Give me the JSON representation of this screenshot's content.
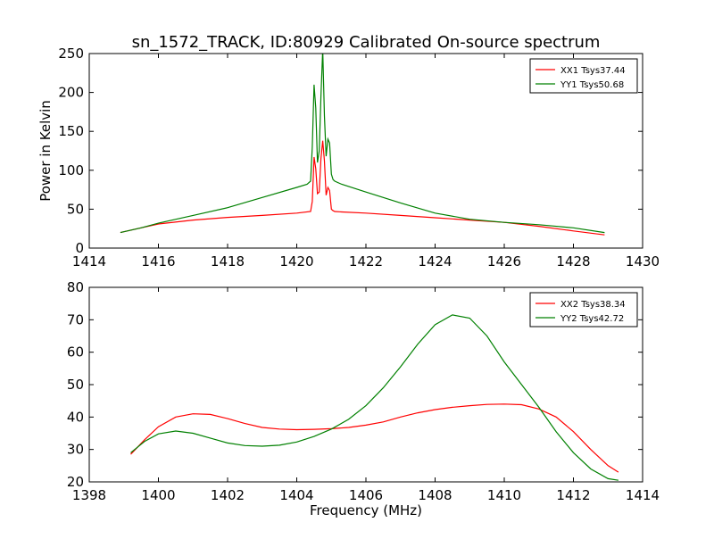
{
  "title": "sn_1572_TRACK, ID:80929 Calibrated On-source spectrum",
  "chart_data": [
    {
      "type": "line",
      "title": "sn_1572_TRACK, ID:80929 Calibrated On-source spectrum",
      "xlabel": "",
      "ylabel": "Power in Kelvin",
      "xlim": [
        1414,
        1430
      ],
      "ylim": [
        0,
        250
      ],
      "xticks": [
        1414,
        1416,
        1418,
        1420,
        1422,
        1424,
        1426,
        1428,
        1430
      ],
      "yticks": [
        0,
        50,
        100,
        150,
        200,
        250
      ],
      "grid": false,
      "legend_position": "top-right",
      "series": [
        {
          "name": "XX1 Tsys37.44",
          "color": "#ff0000",
          "x": [
            1414.9,
            1415.5,
            1416,
            1417,
            1418,
            1419,
            1420,
            1420.4,
            1420.45,
            1420.5,
            1420.55,
            1420.6,
            1420.65,
            1420.7,
            1420.75,
            1420.8,
            1420.85,
            1420.9,
            1420.95,
            1421.0,
            1421.05,
            1421.1,
            1421.3,
            1422,
            1423,
            1424,
            1425,
            1426,
            1427,
            1428,
            1428.9
          ],
          "y": [
            20,
            26,
            31,
            36,
            39.5,
            42,
            45,
            47,
            60,
            117,
            102,
            70,
            72,
            115,
            138,
            112,
            68,
            78,
            74,
            50,
            48,
            47,
            46.5,
            45,
            42,
            39,
            36,
            33,
            28,
            22,
            17
          ]
        },
        {
          "name": "YY1 Tsys50.68",
          "color": "#008000",
          "x": [
            1414.9,
            1415.5,
            1416,
            1417,
            1418,
            1419,
            1420,
            1420.3,
            1420.4,
            1420.45,
            1420.5,
            1420.55,
            1420.6,
            1420.65,
            1420.7,
            1420.75,
            1420.8,
            1420.85,
            1420.9,
            1420.95,
            1421.0,
            1421.05,
            1421.1,
            1421.3,
            1422,
            1423,
            1424,
            1425,
            1426,
            1427,
            1428,
            1428.9
          ],
          "y": [
            20,
            26,
            32,
            42,
            52,
            65,
            78,
            82,
            86,
            130,
            210,
            180,
            110,
            125,
            195,
            255,
            170,
            118,
            140,
            135,
            95,
            88,
            86,
            82,
            72,
            58,
            45,
            37,
            33,
            30,
            26,
            20
          ]
        }
      ]
    },
    {
      "type": "line",
      "title": "",
      "xlabel": "Frequency (MHz)",
      "ylabel": "",
      "xlim": [
        1398,
        1414
      ],
      "ylim": [
        20,
        80
      ],
      "xticks": [
        1398,
        1400,
        1402,
        1404,
        1406,
        1408,
        1410,
        1412,
        1414
      ],
      "yticks": [
        20,
        30,
        40,
        50,
        60,
        70,
        80
      ],
      "grid": false,
      "legend_position": "top-right",
      "series": [
        {
          "name": "XX2 Tsys38.34",
          "color": "#ff0000",
          "x": [
            1399.2,
            1399.6,
            1400,
            1400.5,
            1401,
            1401.5,
            1402,
            1402.5,
            1403,
            1403.5,
            1404,
            1404.5,
            1405,
            1405.5,
            1406,
            1406.5,
            1407,
            1407.5,
            1408,
            1408.5,
            1409,
            1409.5,
            1410,
            1410.5,
            1411,
            1411.5,
            1412,
            1412.5,
            1413,
            1413.3
          ],
          "y": [
            28.5,
            33,
            37,
            40,
            41,
            40.8,
            39.5,
            38,
            36.8,
            36.3,
            36.1,
            36.2,
            36.4,
            36.8,
            37.5,
            38.5,
            40,
            41.3,
            42.3,
            43,
            43.5,
            43.9,
            44,
            43.8,
            42.5,
            40,
            35.5,
            30,
            25,
            23
          ]
        },
        {
          "name": "YY2 Tsys42.72",
          "color": "#008000",
          "x": [
            1399.2,
            1399.6,
            1400,
            1400.5,
            1401,
            1401.5,
            1402,
            1402.5,
            1403,
            1403.5,
            1404,
            1404.5,
            1405,
            1405.5,
            1406,
            1406.5,
            1407,
            1407.5,
            1408,
            1408.5,
            1409,
            1409.5,
            1410,
            1410.5,
            1411,
            1411.5,
            1412,
            1412.5,
            1413,
            1413.3
          ],
          "y": [
            29,
            32.5,
            34.8,
            35.7,
            35,
            33.5,
            32,
            31.2,
            31,
            31.3,
            32.3,
            34,
            36.3,
            39.3,
            43.5,
            49,
            55.5,
            62.5,
            68.5,
            71.5,
            70.5,
            65,
            57,
            50,
            43,
            35.5,
            29,
            24,
            21,
            20.5
          ]
        }
      ]
    }
  ]
}
